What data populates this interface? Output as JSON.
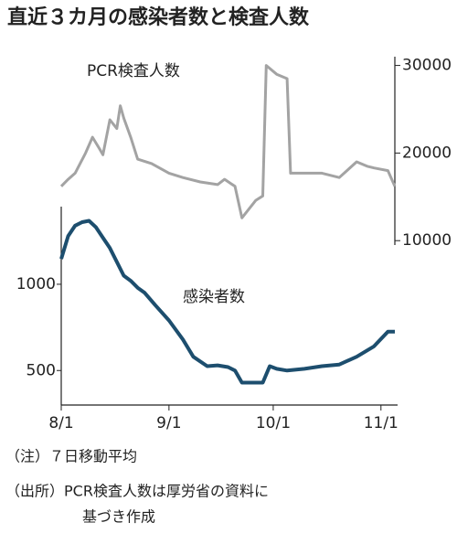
{
  "title": "直近３カ月の感染者数と検査人数",
  "notes": [
    "（注）７日移動平均",
    "（出所）PCR検査人数は厚労省の資料に",
    "基づき作成"
  ],
  "chart_data": [
    {
      "type": "line",
      "axis_side": "right",
      "x": [
        "8/1",
        "8/3",
        "8/5",
        "8/8",
        "8/10",
        "8/12",
        "8/13",
        "8/15",
        "8/17",
        "8/18",
        "8/19",
        "8/21",
        "8/23",
        "8/27",
        "9/1",
        "9/5",
        "9/10",
        "9/15",
        "9/17",
        "9/20",
        "9/22",
        "9/24",
        "9/26",
        "9/28",
        "9/29",
        "10/2",
        "10/5",
        "10/6",
        "10/10",
        "10/15",
        "10/20",
        "10/25",
        "10/28",
        "10/30",
        "11/3",
        "11/5"
      ],
      "series": [
        {
          "name": "PCR検査人数",
          "color": "#a3a3a3",
          "values": [
            16200,
            17000,
            17700,
            20000,
            21800,
            20500,
            19800,
            23800,
            22800,
            25400,
            24000,
            21800,
            19300,
            18800,
            17700,
            17200,
            16700,
            16400,
            17000,
            16200,
            12600,
            13600,
            14600,
            15100,
            30000,
            29000,
            28500,
            17700,
            17700,
            17700,
            17200,
            19000,
            18500,
            18300,
            18000,
            16200
          ]
        }
      ],
      "ylim": [
        9500,
        31000
      ],
      "yticks": [
        10000,
        20000,
        30000
      ]
    },
    {
      "type": "line",
      "axis_side": "left",
      "x": [
        "8/1",
        "8/3",
        "8/5",
        "8/7",
        "8/9",
        "8/11",
        "8/13",
        "8/15",
        "8/17",
        "8/19",
        "8/21",
        "8/23",
        "8/25",
        "8/28",
        "9/1",
        "9/5",
        "9/8",
        "9/12",
        "9/15",
        "9/18",
        "9/20",
        "9/22",
        "9/25",
        "9/28",
        "9/30",
        "10/2",
        "10/5",
        "10/10",
        "10/15",
        "10/20",
        "10/25",
        "10/30",
        "11/3",
        "11/5"
      ],
      "series": [
        {
          "name": "感染者数",
          "color": "#1d4e6e",
          "values": [
            1147,
            1280,
            1340,
            1360,
            1368,
            1330,
            1270,
            1210,
            1130,
            1050,
            1020,
            980,
            950,
            880,
            790,
            680,
            580,
            525,
            530,
            520,
            500,
            430,
            430,
            430,
            525,
            510,
            500,
            510,
            525,
            535,
            580,
            640,
            725,
            725
          ]
        }
      ],
      "ylim": [
        300,
        1450
      ],
      "yticks": [
        500,
        1000
      ],
      "xticks": [
        "8/1",
        "9/1",
        "10/1",
        "11/1"
      ]
    }
  ]
}
